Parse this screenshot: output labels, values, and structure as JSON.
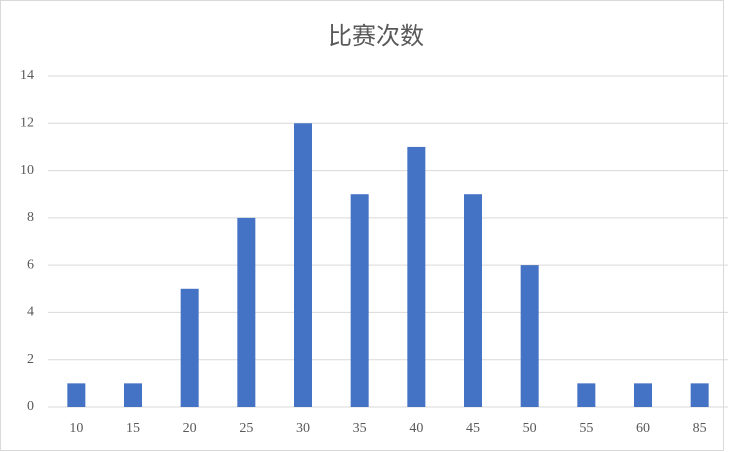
{
  "chart_data": {
    "type": "bar",
    "title": "比赛次数",
    "categories": [
      "10",
      "15",
      "20",
      "25",
      "30",
      "35",
      "40",
      "45",
      "50",
      "55",
      "60",
      "85"
    ],
    "values": [
      1,
      1,
      5,
      8,
      12,
      9,
      11,
      9,
      6,
      1,
      1,
      1
    ],
    "color": "#4472c4",
    "ylim": [
      0,
      14
    ],
    "yticks": [
      0,
      2,
      4,
      6,
      8,
      10,
      12,
      14
    ],
    "grid": true
  }
}
